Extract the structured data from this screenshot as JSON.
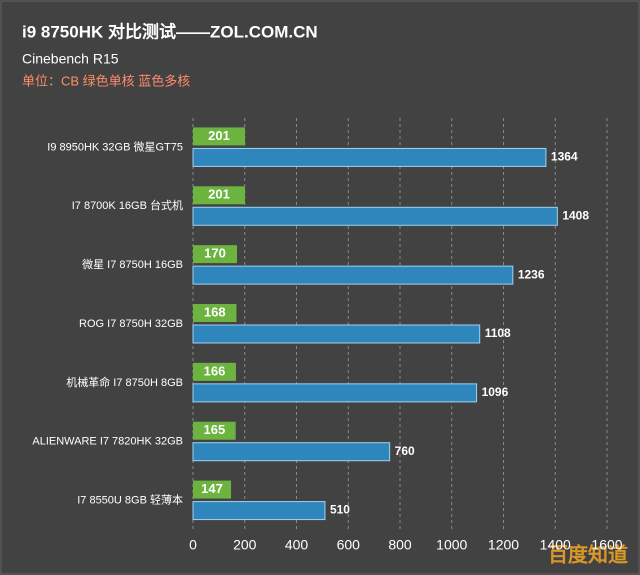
{
  "chart_data": {
    "type": "bar",
    "orientation": "horizontal",
    "title": "i9 8750HK 对比测试——ZOL.COM.CN",
    "subtitle": "Cinebench R15",
    "note": "单位：CB 绿色单核 蓝色多核",
    "categories": [
      "I9 8950HK 32GB 微星GT75",
      "I7 8700K 16GB 台式机",
      "微星 I7 8750H 16GB",
      "ROG I7 8750H 32GB",
      "机械革命 I7 8750H 8GB",
      "ALIENWARE I7 7820HK 32GB",
      "I7 8550U 8GB 轻薄本"
    ],
    "series": [
      {
        "color": "#6cb33f",
        "values": [
          201,
          201,
          170,
          168,
          166,
          165,
          147
        ]
      },
      {
        "color": "#2f86bd",
        "values": [
          1364,
          1408,
          1236,
          1108,
          1096,
          760,
          510
        ]
      }
    ],
    "xlim": [
      0,
      1600
    ],
    "xticks": [
      0,
      200,
      400,
      600,
      800,
      1000,
      1200,
      1400,
      1600
    ],
    "grid": true,
    "watermark": "百度知道"
  }
}
